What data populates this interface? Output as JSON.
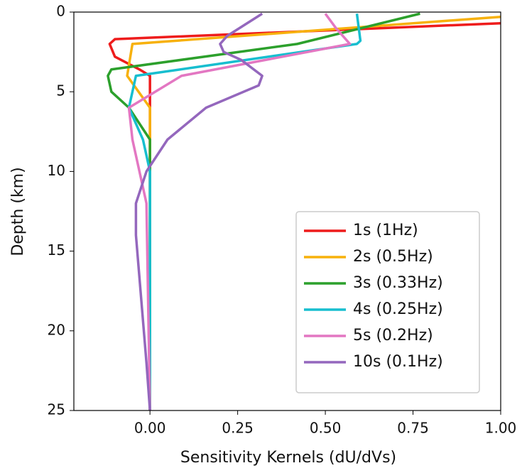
{
  "chart_data": {
    "type": "line",
    "orientation": "depth-profile",
    "xlabel": "Sensitivity Kernels (dU/dVs)",
    "ylabel": "Depth (km)",
    "xlim": [
      -0.217,
      1.0
    ],
    "xticks": [
      {
        "value": 0,
        "label": "0.00"
      },
      {
        "value": 0.25,
        "label": "0.25"
      },
      {
        "value": 0.5,
        "label": "0.50"
      },
      {
        "value": 0.75,
        "label": "0.75"
      },
      {
        "value": 1,
        "label": "1.00"
      }
    ],
    "ylim": [
      0,
      25
    ],
    "yticks": [
      0,
      5,
      10,
      15,
      20,
      25
    ],
    "invert_y": true,
    "legend": "lower right",
    "series": [
      {
        "name": "1s (1Hz)",
        "color": "#ee1c1c",
        "y": [
          0.7,
          1.7,
          2.0,
          2.8,
          3.6,
          4.0,
          25
        ],
        "values": [
          1.0,
          -0.1,
          -0.115,
          -0.1,
          -0.03,
          0.0,
          0.0
        ]
      },
      {
        "name": "2s (0.5Hz)",
        "color": "#f7b10c",
        "y": [
          0.3,
          2.0,
          4.0,
          6.0,
          25
        ],
        "values": [
          1.0,
          -0.05,
          -0.065,
          0.0,
          0.0
        ]
      },
      {
        "name": "3s (0.33Hz)",
        "color": "#2ca02c",
        "y": [
          0.1,
          2.0,
          3.6,
          4.0,
          5.0,
          6.0,
          8.0,
          25
        ],
        "values": [
          0.77,
          0.42,
          -0.11,
          -0.12,
          -0.11,
          -0.06,
          0.0,
          0.0
        ]
      },
      {
        "name": "4s (0.25Hz)",
        "color": "#17becf",
        "y": [
          0.1,
          1.8,
          2.0,
          4.0,
          6.0,
          8.0,
          10.0,
          25
        ],
        "values": [
          0.59,
          0.6,
          0.59,
          -0.04,
          -0.06,
          -0.02,
          0.0,
          0.0
        ]
      },
      {
        "name": "5s (0.2Hz)",
        "color": "#e377c2",
        "y": [
          0.1,
          1.0,
          2.0,
          4.0,
          6.0,
          8.0,
          10.0,
          12.0,
          25
        ],
        "values": [
          0.5,
          0.53,
          0.57,
          0.09,
          -0.06,
          -0.05,
          -0.03,
          -0.01,
          0.0
        ]
      },
      {
        "name": "10s (0.1Hz)",
        "color": "#9467bd",
        "y": [
          0.1,
          1.5,
          2.0,
          2.5,
          3.0,
          4.0,
          4.6,
          6.0,
          8.0,
          10.0,
          12.0,
          14.0,
          22.0,
          25
        ],
        "values": [
          0.32,
          0.22,
          0.2,
          0.21,
          0.26,
          0.32,
          0.31,
          0.16,
          0.05,
          -0.01,
          -0.04,
          -0.04,
          -0.01,
          0.0
        ]
      }
    ]
  }
}
